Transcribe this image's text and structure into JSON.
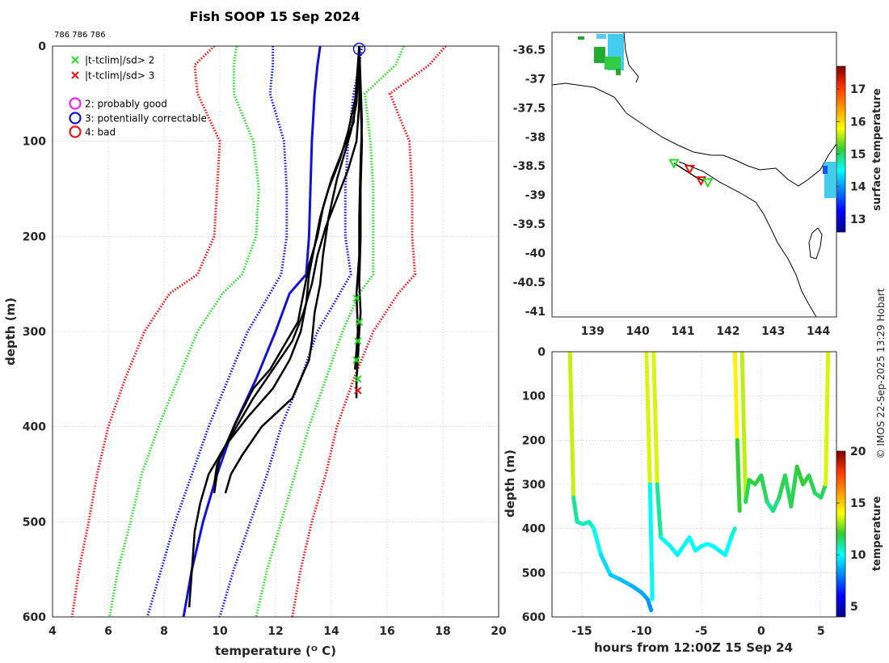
{
  "id_text": "786 786 786",
  "credit": "© IMOS 22-Sep-2025 13:29 Hobart",
  "colors": {
    "clim2": "#22dd22",
    "clim3": "#ee1111",
    "blue": "#1111dd",
    "black": "#000000",
    "probably_good": "#ee22ee"
  },
  "legend": {
    "items": [
      {
        "marker": "x",
        "color": "#22dd22",
        "label": "|t-tclim|/sd> 2"
      },
      {
        "marker": "x",
        "color": "#ee1111",
        "label": "|t-tclim|/sd> 3"
      },
      {
        "marker": "o",
        "color": "#ee22ee",
        "label": "2: probably good"
      },
      {
        "marker": "o",
        "color": "#1111dd",
        "label": "3: potentially correctable"
      },
      {
        "marker": "o",
        "color": "#ee1111",
        "label": "4: bad"
      }
    ]
  },
  "chart_data": [
    {
      "id": "profile",
      "type": "line",
      "title": "Fish SOOP 15 Sep 2024",
      "xlabel": "temperature (ᴼ C)",
      "ylabel": "depth (m)",
      "xlim": [
        4,
        20
      ],
      "ylim": [
        600,
        0
      ],
      "xticks": [
        "4",
        "6",
        "8",
        "10",
        "12",
        "14",
        "16",
        "18",
        "20"
      ],
      "yticks": [
        "0",
        "100",
        "200",
        "300",
        "400",
        "500",
        "600"
      ],
      "grid": true,
      "climatology": {
        "depth": [
          0,
          20,
          50,
          100,
          150,
          200,
          240,
          260,
          300,
          350,
          400,
          450,
          500,
          550,
          600
        ],
        "series": [
          {
            "name": "mean-3sd",
            "color": "#ee1111",
            "values": [
              9.8,
              9.1,
              9.2,
              10.0,
              9.9,
              9.8,
              9.2,
              8.2,
              7.3,
              6.6,
              6.0,
              5.6,
              5.3,
              4.95,
              4.7
            ]
          },
          {
            "name": "mean-2sd",
            "color": "#22dd22",
            "values": [
              10.6,
              10.5,
              10.5,
              11.2,
              11.4,
              11.3,
              10.8,
              10.1,
              9.2,
              8.5,
              7.8,
              7.2,
              6.8,
              6.35,
              6.05
            ]
          },
          {
            "name": "mean-1sd",
            "color": "#1111dd",
            "values": [
              11.9,
              11.9,
              11.8,
              12.3,
              12.4,
              12.4,
              12.2,
              11.8,
              11.0,
              10.3,
              9.6,
              9.0,
              8.4,
              7.9,
              7.4
            ]
          },
          {
            "name": "mean",
            "color": "#1111dd",
            "solid": true,
            "values": [
              13.6,
              13.5,
              13.4,
              13.3,
              13.25,
              13.2,
              13.1,
              12.5,
              12.0,
              11.3,
              10.5,
              9.9,
              9.4,
              9.0,
              8.7
            ]
          },
          {
            "name": "mean+1sd",
            "color": "#1111dd",
            "values": [
              15.1,
              15.0,
              14.8,
              14.6,
              14.5,
              14.5,
              14.7,
              14.3,
              13.5,
              12.9,
              12.2,
              11.7,
              11.1,
              10.5,
              10.0
            ]
          },
          {
            "name": "mean+2sd",
            "color": "#22dd22",
            "values": [
              16.6,
              16.3,
              15.2,
              15.4,
              15.5,
              15.5,
              15.5,
              15.0,
              14.4,
              13.8,
              13.2,
              12.7,
              12.2,
              11.7,
              11.3
            ]
          },
          {
            "name": "mean+3sd",
            "color": "#ee1111",
            "values": [
              18.1,
              17.5,
              16.1,
              16.8,
              16.9,
              16.9,
              17.0,
              16.4,
              15.5,
              14.8,
              14.2,
              13.8,
              13.3,
              12.9,
              12.6
            ]
          }
        ]
      },
      "profiles": [
        {
          "temp": [
            15.0,
            15.0,
            15.05,
            15.1,
            15.05,
            15.05,
            15.0,
            15.05,
            15.0,
            14.95,
            14.9,
            14.9
          ],
          "depth": [
            0,
            30,
            60,
            100,
            150,
            200,
            250,
            280,
            300,
            330,
            350,
            370
          ]
        },
        {
          "temp": [
            15.0,
            15.05,
            15.1,
            15.05,
            15.0,
            15.0,
            14.9,
            14.95,
            14.85
          ],
          "depth": [
            0,
            40,
            80,
            120,
            180,
            220,
            260,
            300,
            340
          ]
        },
        {
          "temp": [
            15.0,
            14.9,
            14.7,
            14.5,
            14.2,
            13.9,
            13.7,
            13.6,
            13.4,
            13.3,
            13.2,
            12.6,
            11.5,
            10.8,
            10.4,
            10.2
          ],
          "depth": [
            0,
            60,
            90,
            110,
            140,
            180,
            220,
            250,
            280,
            310,
            330,
            370,
            400,
            430,
            450,
            470
          ]
        },
        {
          "temp": [
            15.0,
            14.8,
            14.4,
            14.0,
            13.7,
            13.5,
            13.2,
            13.0,
            12.8,
            12.2,
            11.8,
            11.2,
            10.5,
            9.9,
            9.8
          ],
          "depth": [
            0,
            80,
            110,
            140,
            170,
            200,
            230,
            260,
            290,
            320,
            340,
            360,
            400,
            440,
            460
          ]
        },
        {
          "temp": [
            15.0,
            14.9,
            14.6,
            14.3,
            13.9,
            13.6,
            13.4,
            13.2,
            13.1,
            12.9,
            12.5,
            11.9,
            11.0,
            10.2,
            9.6,
            9.3,
            9.1,
            9.0,
            8.9
          ],
          "depth": [
            0,
            50,
            90,
            120,
            150,
            180,
            210,
            240,
            270,
            300,
            330,
            360,
            390,
            420,
            450,
            480,
            510,
            550,
            590
          ]
        },
        {
          "temp": [
            15.0,
            15.0,
            14.9,
            14.6,
            14.2,
            13.8,
            13.5,
            13.3,
            13.0,
            12.6,
            11.9,
            11.2,
            10.6,
            10.0,
            9.8
          ],
          "depth": [
            0,
            60,
            100,
            130,
            160,
            190,
            220,
            250,
            280,
            310,
            340,
            370,
            400,
            430,
            470
          ]
        }
      ],
      "flags": {
        "probably_good": [],
        "potentially_correctable": [
          [
            15.0,
            3
          ]
        ],
        "bad": [],
        "sd2": [
          [
            14.9,
            265
          ],
          [
            15.0,
            290
          ],
          [
            14.95,
            310
          ],
          [
            14.9,
            330
          ],
          [
            14.95,
            350
          ]
        ],
        "sd3": [
          [
            14.95,
            362
          ]
        ]
      }
    },
    {
      "id": "map",
      "type": "scatter",
      "xlim": [
        138.1,
        144.4
      ],
      "ylim": [
        -41.1,
        -36.2
      ],
      "xticks": [
        "139",
        "140",
        "141",
        "142",
        "143",
        "144"
      ],
      "yticks": [
        "-36.5",
        "-37",
        "-37.5",
        "-38",
        "-38.5",
        "-39",
        "-39.5",
        "-40",
        "-40.5",
        "-41"
      ],
      "colorbar": {
        "label": "surface temperature",
        "ticks": [
          "13",
          "14",
          "15",
          "16",
          "17"
        ],
        "range": [
          12.6,
          17.7
        ]
      },
      "track": [
        [
          140.8,
          -38.45
        ],
        [
          141.1,
          -38.6
        ],
        [
          141.3,
          -38.7
        ],
        [
          141.45,
          -38.75
        ]
      ],
      "markers": [
        {
          "lon": 140.8,
          "lat": -38.45,
          "shape": "triangle",
          "color": "#22dd22"
        },
        {
          "lon": 141.15,
          "lat": -38.55,
          "shape": "triangle",
          "color": "#ee1111"
        },
        {
          "lon": 141.4,
          "lat": -38.75,
          "shape": "triangle",
          "color": "#ee1111"
        },
        {
          "lon": 141.55,
          "lat": -38.78,
          "shape": "triangle",
          "color": "#22dd22"
        }
      ]
    },
    {
      "id": "section",
      "type": "line",
      "xlabel": "hours from 12:00Z 15 Sep 24",
      "ylabel": "depth (m)",
      "xlim": [
        -17.5,
        6.3
      ],
      "ylim": [
        600,
        0
      ],
      "xticks": [
        "-15",
        "-10",
        "-5",
        "0",
        "5"
      ],
      "yticks": [
        "0",
        "100",
        "200",
        "300",
        "400",
        "500",
        "600"
      ],
      "colorbar": {
        "label": "temperature",
        "ticks": [
          "5",
          "10",
          "15",
          "20"
        ],
        "range": [
          4,
          20
        ]
      },
      "profiles": [
        {
          "t": [
            -16.0,
            -15.7,
            -15.4,
            -14.9,
            -14.4,
            -14.0,
            -13.4,
            -12.6,
            -11.8,
            -10.8,
            -10.0,
            -9.5,
            -9.2
          ],
          "d": [
            0,
            330,
            385,
            390,
            385,
            400,
            460,
            505,
            515,
            530,
            545,
            560,
            585
          ]
        },
        {
          "t": [
            -9.6,
            -9.3,
            -9.1
          ],
          "d": [
            0,
            300,
            560
          ]
        },
        {
          "t": [
            -9.0,
            -8.7,
            -8.4,
            -8.0,
            -7.6,
            -7.0,
            -6.5,
            -6.0,
            -5.5,
            -5.0,
            -4.5,
            -4.0,
            -3.5,
            -3.0,
            -2.5,
            -2.2
          ],
          "d": [
            0,
            300,
            420,
            430,
            440,
            460,
            440,
            420,
            450,
            440,
            435,
            440,
            450,
            460,
            420,
            400
          ]
        },
        {
          "t": [
            -2.2,
            -2.0,
            -1.8
          ],
          "d": [
            0,
            200,
            360
          ]
        },
        {
          "t": [
            -1.6,
            -1.3,
            -1.0,
            -0.5,
            0.0,
            0.5,
            1.0,
            1.5,
            2.0,
            2.5,
            3.0,
            3.5,
            4.0,
            4.5,
            5.0,
            5.4,
            5.6
          ],
          "d": [
            0,
            340,
            290,
            300,
            280,
            340,
            360,
            330,
            280,
            350,
            260,
            300,
            280,
            320,
            330,
            300,
            0
          ]
        }
      ]
    }
  ]
}
